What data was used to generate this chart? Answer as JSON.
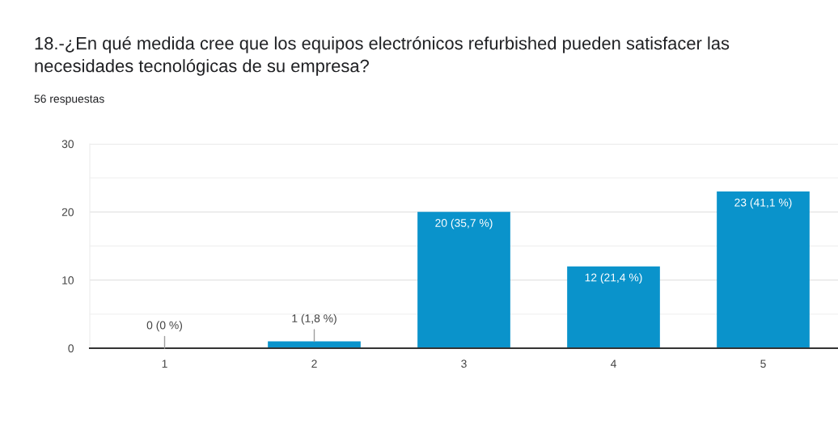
{
  "chart_data": {
    "type": "bar",
    "title": "18.-¿En qué medida cree que los equipos electrónicos refurbished pueden satisfacer las necesidades tecnológicas de su empresa?",
    "subtitle": "56 respuestas",
    "categories": [
      "1",
      "2",
      "3",
      "4",
      "5"
    ],
    "values": [
      0,
      1,
      20,
      12,
      23
    ],
    "color": "#0a93cb",
    "value_labels": [
      "0 (0 %)",
      "1 (1,8 %)",
      "20 (35,7 %)",
      "12 (21,4 %)",
      "23 (41,1 %)"
    ],
    "ylim": [
      0,
      30
    ],
    "yticks": [
      0,
      {
        "value": 5,
        "label": null
      },
      10,
      {
        "value": 15,
        "label": null
      },
      20,
      {
        "value": 25,
        "label": null
      },
      30
    ],
    "grid": "y"
  }
}
